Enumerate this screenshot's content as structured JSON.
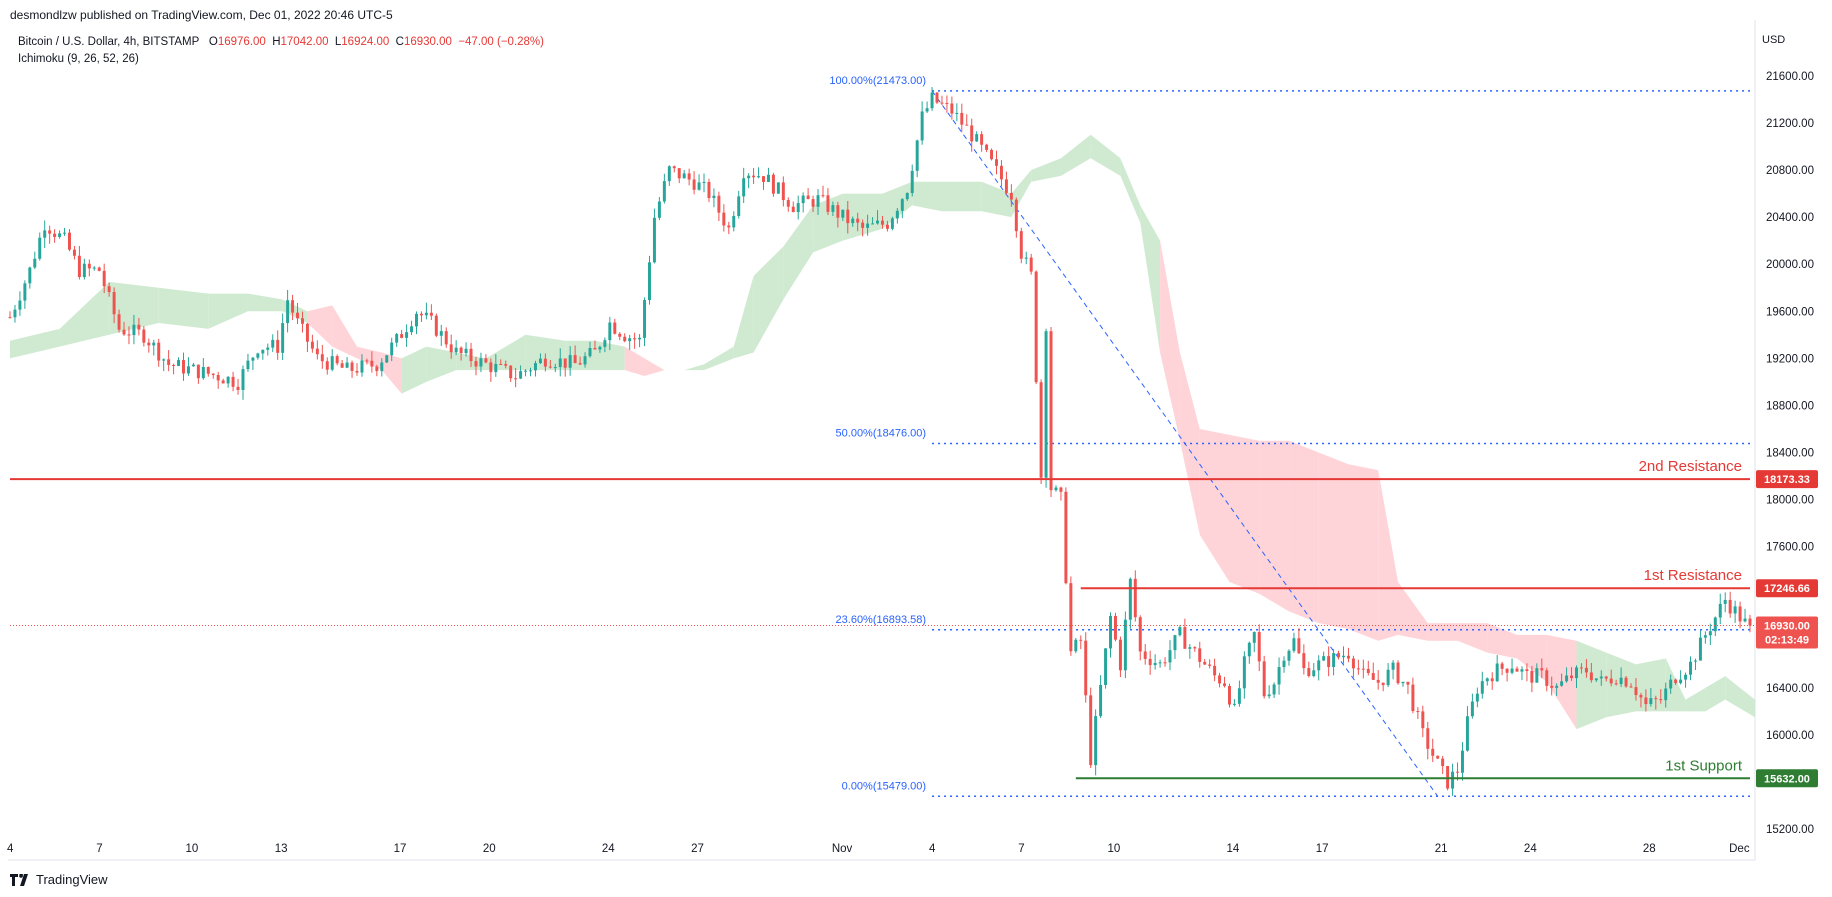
{
  "header": {
    "publisher_text": "desmondlzw published on TradingView.com, Dec 01, 2022 20:46 UTC-5"
  },
  "legend": {
    "symbol": "Bitcoin / U.S. Dollar, 4h, BITSTAMP",
    "o_label": "O",
    "o_value": "16976.00",
    "h_label": "H",
    "h_value": "17042.00",
    "l_label": "L",
    "l_value": "16924.00",
    "c_label": "C",
    "c_value": "16930.00",
    "change": "−47.00 (−0.28%)",
    "indicator": "Ichimoku (9, 26, 52, 26)"
  },
  "currency_label": "USD",
  "footer": {
    "logo_text": "TradingView"
  },
  "colors": {
    "up": "#26a69a",
    "down": "#ef5350",
    "resistance": "#e53935",
    "support": "#2e7d32",
    "fib": "#2962ff",
    "kumo_bull": "#c8e6c9",
    "kumo_bear": "#ffcdd2"
  },
  "chart_data": {
    "type": "candlestick",
    "title": "Bitcoin / U.S. Dollar, 4h, BITSTAMP",
    "ylim": [
      15050,
      21850
    ],
    "y_ticks": [
      "21600.00",
      "21200.00",
      "20800.00",
      "20400.00",
      "20000.00",
      "19600.00",
      "19200.00",
      "18800.00",
      "18400.00",
      "18000.00",
      "17600.00",
      "16400.00",
      "16000.00",
      "15200.00"
    ],
    "x_ticks": [
      {
        "label": "4",
        "i": 0
      },
      {
        "label": "7",
        "i": 18
      },
      {
        "label": "10",
        "i": 36
      },
      {
        "label": "13",
        "i": 54
      },
      {
        "label": "17",
        "i": 78
      },
      {
        "label": "20",
        "i": 96
      },
      {
        "label": "24",
        "i": 120
      },
      {
        "label": "27",
        "i": 138
      },
      {
        "label": "Nov",
        "i": 167
      },
      {
        "label": "4",
        "i": 186
      },
      {
        "label": "7",
        "i": 204
      },
      {
        "label": "10",
        "i": 222
      },
      {
        "label": "14",
        "i": 246
      },
      {
        "label": "17",
        "i": 264
      },
      {
        "label": "21",
        "i": 288
      },
      {
        "label": "24",
        "i": 306
      },
      {
        "label": "28",
        "i": 330
      },
      {
        "label": "Dec",
        "i": 348
      }
    ],
    "candles_count": 352,
    "close_path": [
      [
        0,
        19550
      ],
      [
        4,
        19950
      ],
      [
        7,
        20350
      ],
      [
        11,
        20200
      ],
      [
        14,
        19950
      ],
      [
        18,
        19950
      ],
      [
        22,
        19450
      ],
      [
        27,
        19400
      ],
      [
        32,
        19150
      ],
      [
        37,
        19100
      ],
      [
        42,
        19050
      ],
      [
        46,
        19000
      ],
      [
        50,
        19300
      ],
      [
        54,
        19300
      ],
      [
        56,
        19700
      ],
      [
        58,
        19500
      ],
      [
        62,
        19200
      ],
      [
        68,
        19100
      ],
      [
        74,
        19150
      ],
      [
        78,
        19350
      ],
      [
        82,
        19600
      ],
      [
        85,
        19500
      ],
      [
        90,
        19250
      ],
      [
        96,
        19150
      ],
      [
        102,
        19050
      ],
      [
        108,
        19200
      ],
      [
        114,
        19150
      ],
      [
        118,
        19250
      ],
      [
        121,
        19500
      ],
      [
        124,
        19400
      ],
      [
        127,
        19350
      ],
      [
        130,
        20400
      ],
      [
        133,
        20800
      ],
      [
        138,
        20700
      ],
      [
        141,
        20600
      ],
      [
        145,
        20300
      ],
      [
        148,
        20800
      ],
      [
        152,
        20750
      ],
      [
        158,
        20500
      ],
      [
        163,
        20550
      ],
      [
        168,
        20400
      ],
      [
        172,
        20300
      ],
      [
        177,
        20350
      ],
      [
        181,
        20650
      ],
      [
        184,
        21250
      ],
      [
        186,
        21400
      ],
      [
        190,
        21300
      ],
      [
        194,
        21100
      ],
      [
        198,
        20850
      ],
      [
        202,
        20600
      ],
      [
        204,
        20100
      ],
      [
        206,
        19900
      ],
      [
        208,
        18200
      ],
      [
        209,
        19500
      ],
      [
        210,
        18100
      ],
      [
        212,
        18000
      ],
      [
        214,
        16700
      ],
      [
        216,
        16800
      ],
      [
        218,
        15800
      ],
      [
        220,
        16400
      ],
      [
        222,
        17000
      ],
      [
        224,
        16600
      ],
      [
        226,
        17300
      ],
      [
        228,
        16700
      ],
      [
        232,
        16600
      ],
      [
        236,
        16850
      ],
      [
        240,
        16650
      ],
      [
        243,
        16500
      ],
      [
        245,
        16450
      ],
      [
        247,
        16200
      ],
      [
        249,
        16600
      ],
      [
        251,
        16850
      ],
      [
        253,
        16350
      ],
      [
        255,
        16450
      ],
      [
        257,
        16700
      ],
      [
        259,
        16800
      ],
      [
        261,
        16550
      ],
      [
        264,
        16600
      ],
      [
        267,
        16650
      ],
      [
        270,
        16700
      ],
      [
        273,
        16500
      ],
      [
        276,
        16450
      ],
      [
        279,
        16550
      ],
      [
        282,
        16400
      ],
      [
        285,
        16000
      ],
      [
        288,
        15750
      ],
      [
        290,
        15600
      ],
      [
        292,
        15700
      ],
      [
        294,
        16100
      ],
      [
        296,
        16400
      ],
      [
        298,
        16500
      ],
      [
        300,
        16550
      ],
      [
        303,
        16600
      ],
      [
        306,
        16500
      ],
      [
        309,
        16500
      ],
      [
        312,
        16400
      ],
      [
        315,
        16500
      ],
      [
        318,
        16550
      ],
      [
        321,
        16450
      ],
      [
        324,
        16500
      ],
      [
        327,
        16450
      ],
      [
        330,
        16250
      ],
      [
        333,
        16300
      ],
      [
        336,
        16500
      ],
      [
        339,
        16600
      ],
      [
        342,
        16850
      ],
      [
        344,
        17000
      ],
      [
        346,
        17150
      ],
      [
        348,
        17050
      ],
      [
        350,
        16950
      ],
      [
        351,
        16930
      ]
    ],
    "ichimoku_cloud_path": [
      [
        0,
        19200,
        19350
      ],
      [
        10,
        19300,
        19450
      ],
      [
        20,
        19400,
        19850
      ],
      [
        30,
        19500,
        19800
      ],
      [
        40,
        19450,
        19750
      ],
      [
        48,
        19600,
        19750
      ],
      [
        55,
        19600,
        19700
      ],
      [
        60,
        19500,
        19600
      ],
      [
        65,
        19300,
        19650
      ],
      [
        70,
        19200,
        19300
      ],
      [
        75,
        19100,
        19250
      ],
      [
        79,
        18900,
        19200
      ],
      [
        84,
        19000,
        19300
      ],
      [
        90,
        19100,
        19250
      ],
      [
        96,
        19100,
        19200
      ],
      [
        104,
        19100,
        19400
      ],
      [
        112,
        19100,
        19350
      ],
      [
        118,
        19100,
        19350
      ],
      [
        124,
        19100,
        19300
      ],
      [
        128,
        19050,
        19200
      ],
      [
        132,
        19100,
        19100
      ],
      [
        136,
        19100,
        19100
      ],
      [
        140,
        19150,
        19100
      ],
      [
        146,
        19200,
        19300
      ],
      [
        150,
        19250,
        19900
      ],
      [
        156,
        19700,
        20150
      ],
      [
        162,
        20100,
        20500
      ],
      [
        168,
        20200,
        20600
      ],
      [
        176,
        20300,
        20600
      ],
      [
        182,
        20500,
        20700
      ],
      [
        188,
        20450,
        20700
      ],
      [
        196,
        20450,
        20700
      ],
      [
        202,
        20400,
        20600
      ],
      [
        206,
        20700,
        20800
      ],
      [
        212,
        20750,
        20900
      ],
      [
        218,
        20900,
        21100
      ],
      [
        224,
        20750,
        20900
      ],
      [
        228,
        20350,
        20500
      ],
      [
        232,
        19250,
        20200
      ],
      [
        236,
        18500,
        19250
      ],
      [
        240,
        17700,
        18600
      ],
      [
        246,
        17300,
        18550
      ],
      [
        252,
        17200,
        18500
      ],
      [
        258,
        17050,
        18500
      ],
      [
        264,
        16950,
        18400
      ],
      [
        270,
        16900,
        18300
      ],
      [
        276,
        16800,
        18250
      ],
      [
        280,
        16850,
        17300
      ],
      [
        286,
        16800,
        16950
      ],
      [
        292,
        16800,
        16950
      ],
      [
        298,
        16700,
        16950
      ],
      [
        304,
        16650,
        16850
      ],
      [
        310,
        16450,
        16850
      ],
      [
        316,
        16050,
        16800
      ],
      [
        322,
        16150,
        16700
      ],
      [
        328,
        16200,
        16600
      ],
      [
        334,
        16200,
        16650
      ],
      [
        338,
        16200,
        16300
      ],
      [
        342,
        16200,
        16400
      ],
      [
        346,
        16300,
        16500
      ],
      [
        352,
        16150,
        16300
      ]
    ],
    "levels": [
      {
        "name": "2nd Resistance",
        "value": 18173.33,
        "label": "18173.33",
        "color": "#e53935",
        "start_i": 0
      },
      {
        "name": "1st Resistance",
        "value": 17246.66,
        "label": "17246.66",
        "color": "#e53935",
        "start_i": 216
      },
      {
        "name": "1st Support",
        "value": 15632.0,
        "label": "15632.00",
        "color": "#2e7d32",
        "start_i": 215
      }
    ],
    "fibonacci": [
      {
        "label": "100.00%(21473.00)",
        "value": 21473.0
      },
      {
        "label": "50.00%(18476.00)",
        "value": 18476.0
      },
      {
        "label": "23.60%(16893.58)",
        "value": 16893.58
      },
      {
        "label": "0.00%(15479.00)",
        "value": 15479.0
      }
    ],
    "fib_start_i": 186,
    "fib_trendline": [
      [
        186,
        21473.0
      ],
      [
        288,
        15479.0
      ]
    ],
    "last_price": {
      "value": 16930.0,
      "label": "16930.00",
      "countdown": "02:13:49"
    }
  }
}
